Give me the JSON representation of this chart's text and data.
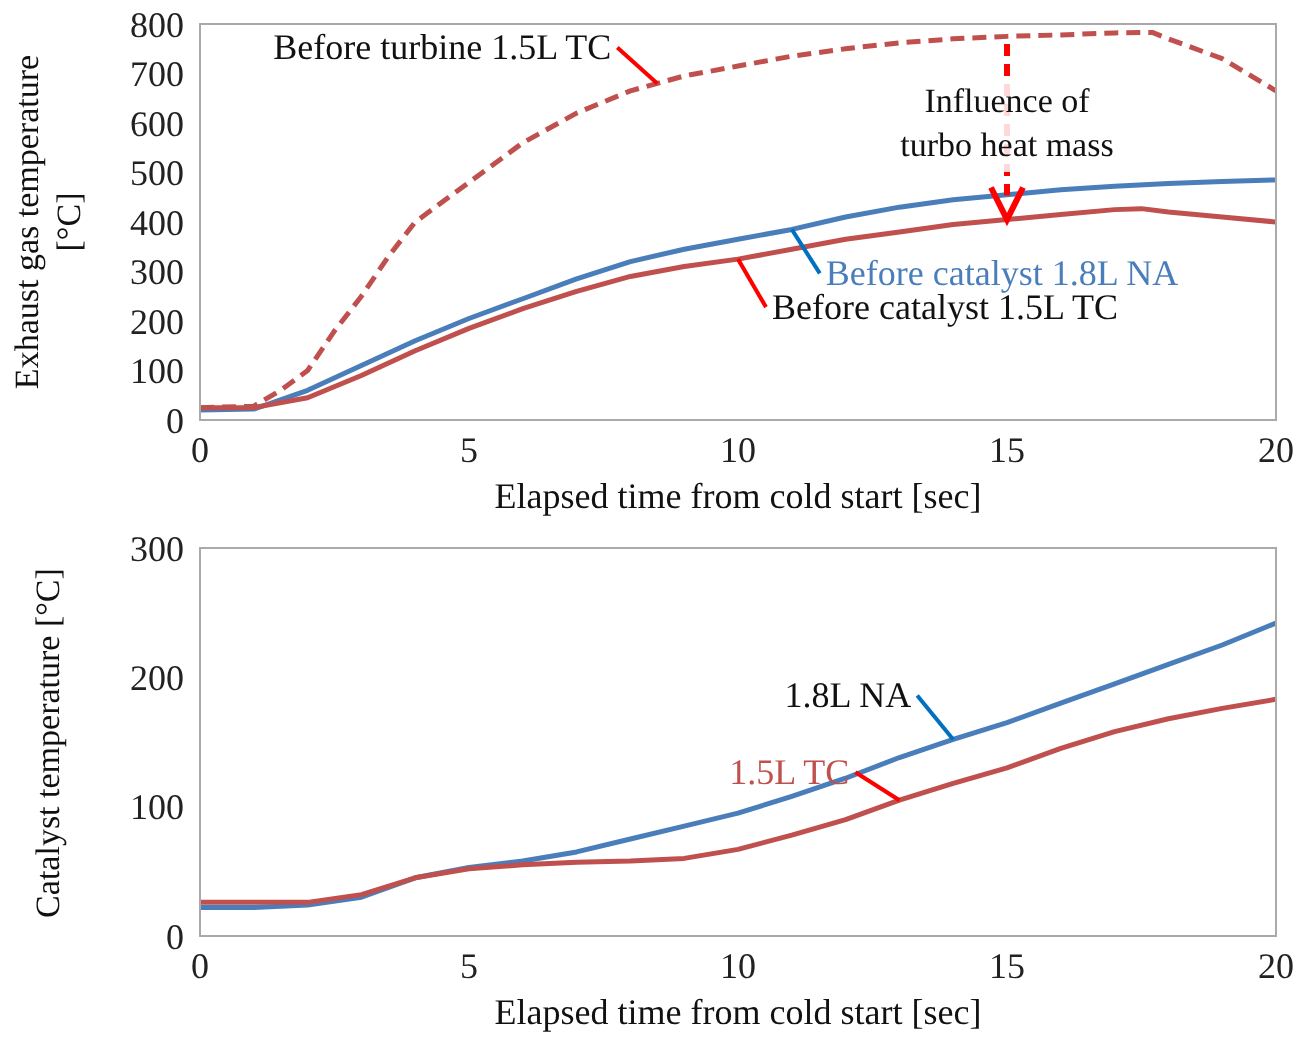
{
  "chart_data": [
    {
      "type": "line",
      "ylabel": "Exhaust gas temperature [°C]",
      "xlabel": "Elapsed time from cold start [sec]",
      "xlim": [
        0,
        20
      ],
      "xticks": [
        0,
        5,
        10,
        15,
        20
      ],
      "ylim": [
        0,
        800
      ],
      "yticks": [
        0,
        100,
        200,
        300,
        400,
        500,
        600,
        700,
        800
      ],
      "grid": false,
      "legend": false,
      "marker": "none",
      "series": [
        {
          "name": "Before turbine 1.5L TC",
          "color": "#c0504d",
          "line_style": "dashed",
          "x": [
            0,
            1,
            1.5,
            2,
            2.5,
            3,
            3.5,
            4,
            5,
            6,
            7,
            8,
            9,
            10,
            11,
            12,
            13,
            14,
            15,
            16,
            17,
            17.7,
            18,
            19,
            20
          ],
          "values": [
            25,
            28,
            60,
            100,
            180,
            250,
            330,
            400,
            480,
            560,
            620,
            665,
            695,
            715,
            735,
            750,
            762,
            770,
            775,
            778,
            782,
            783,
            770,
            730,
            665
          ]
        },
        {
          "name": "Before catalyst 1.8L NA",
          "color": "#4a7ebb",
          "line_style": "solid",
          "x": [
            0,
            1,
            2,
            3,
            4,
            5,
            6,
            7,
            8,
            9,
            10,
            11,
            12,
            13,
            14,
            15,
            16,
            17,
            18,
            19,
            20
          ],
          "values": [
            20,
            22,
            60,
            110,
            160,
            205,
            245,
            285,
            320,
            345,
            365,
            385,
            410,
            430,
            445,
            455,
            465,
            472,
            478,
            482,
            485
          ]
        },
        {
          "name": "Before catalyst 1.5L TC",
          "color": "#c0504d",
          "line_style": "solid",
          "x": [
            0,
            1,
            2,
            3,
            4,
            5,
            6,
            7,
            8,
            9,
            10,
            11,
            12,
            13,
            14,
            15,
            16,
            17,
            17.5,
            18,
            19,
            20
          ],
          "values": [
            25,
            25,
            45,
            90,
            140,
            185,
            225,
            260,
            290,
            310,
            325,
            345,
            365,
            380,
            395,
            405,
            415,
            425,
            427,
            420,
            410,
            400
          ]
        }
      ],
      "annotations": [
        {
          "text": "Influence of turbo heat mass",
          "x": 15,
          "y": 405
        }
      ]
    },
    {
      "type": "line",
      "ylabel": "Catalyst temperature [°C]",
      "xlabel": "Elapsed time from cold start [sec]",
      "xlim": [
        0,
        20
      ],
      "xticks": [
        0,
        5,
        10,
        15,
        20
      ],
      "ylim": [
        0,
        300
      ],
      "yticks": [
        0,
        100,
        200,
        300
      ],
      "grid": false,
      "legend": false,
      "marker": "none",
      "series": [
        {
          "name": "1.8L NA",
          "color": "#4a7ebb",
          "line_style": "solid",
          "x": [
            0,
            1,
            2,
            3,
            4,
            5,
            6,
            7,
            8,
            9,
            10,
            11,
            12,
            13,
            14,
            15,
            16,
            17,
            18,
            19,
            20
          ],
          "values": [
            22,
            22,
            24,
            30,
            45,
            53,
            58,
            65,
            75,
            85,
            95,
            108,
            122,
            138,
            152,
            165,
            180,
            195,
            210,
            225,
            242
          ]
        },
        {
          "name": "1.5L TC",
          "color": "#c0504d",
          "line_style": "solid",
          "x": [
            0,
            1,
            2,
            3,
            4,
            5,
            6,
            7,
            8,
            9,
            10,
            11,
            12,
            13,
            14,
            15,
            16,
            17,
            18,
            19,
            20
          ],
          "values": [
            26,
            26,
            26,
            32,
            45,
            52,
            55,
            57,
            58,
            60,
            67,
            78,
            90,
            105,
            118,
            130,
            145,
            158,
            168,
            176,
            183
          ]
        }
      ]
    }
  ]
}
